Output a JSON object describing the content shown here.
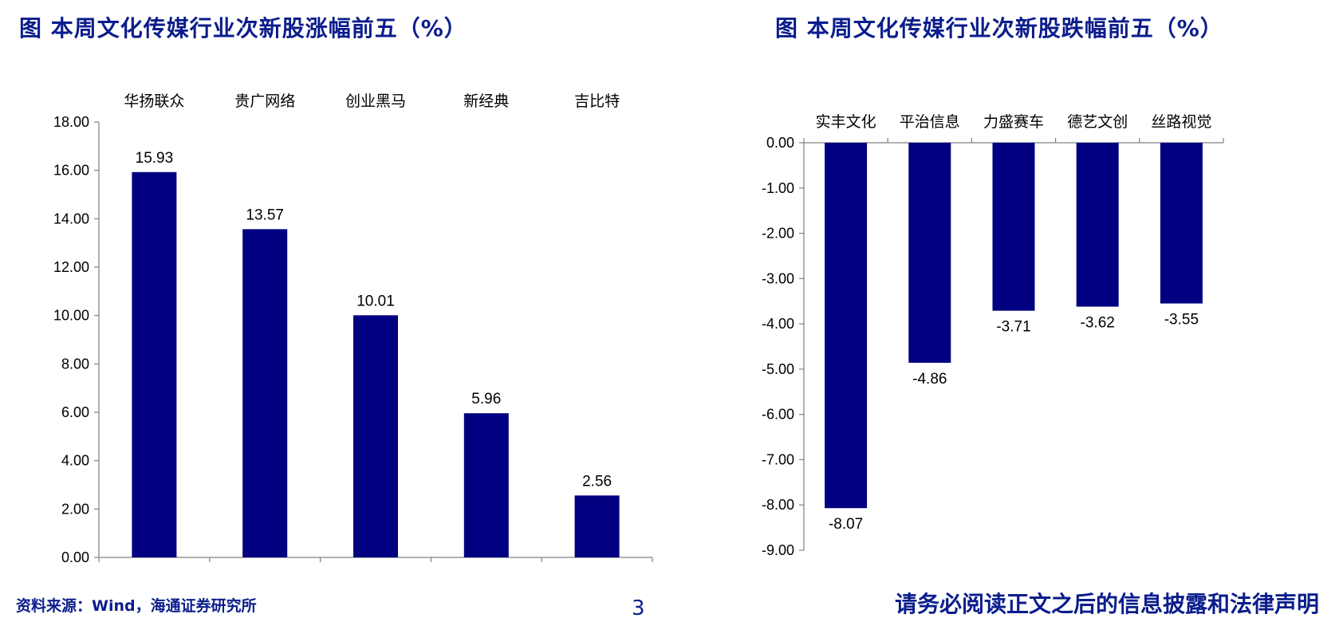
{
  "titles": {
    "left": "图 本周文化传媒行业次新股涨幅前五（%）",
    "right": "图 本周文化传媒行业次新股跌幅前五（%）"
  },
  "footer": {
    "source": "资料来源：Wind，海通证券研究所",
    "page": "3",
    "disclaimer": "请务必阅读正文之后的信息披露和法律声明"
  },
  "colors": {
    "bar": "#000080",
    "title": "#0b1d8c",
    "axis": "#808080"
  },
  "chart_data": [
    {
      "type": "bar",
      "title": "图 本周文化传媒行业次新股涨幅前五（%）",
      "categories": [
        "华扬联众",
        "贵广网络",
        "创业黑马",
        "新经典",
        "吉比特"
      ],
      "values": [
        15.93,
        13.57,
        10.01,
        5.96,
        2.56
      ],
      "value_labels": [
        "15.93",
        "13.57",
        "10.01",
        "5.96",
        "2.56"
      ],
      "ylim": [
        0,
        18
      ],
      "yticks": [
        0,
        2,
        4,
        6,
        8,
        10,
        12,
        14,
        16,
        18
      ],
      "ytick_labels": [
        "0.00",
        "2.00",
        "4.00",
        "6.00",
        "8.00",
        "10.00",
        "12.00",
        "14.00",
        "16.00",
        "18.00"
      ],
      "xlabel": "",
      "ylabel": "",
      "category_axis_position": "top",
      "grid": false,
      "legend": "none"
    },
    {
      "type": "bar",
      "title": "图 本周文化传媒行业次新股跌幅前五（%）",
      "categories": [
        "实丰文化",
        "平治信息",
        "力盛赛车",
        "德艺文创",
        "丝路视觉"
      ],
      "values": [
        -8.07,
        -4.86,
        -3.71,
        -3.62,
        -3.55
      ],
      "value_labels": [
        "-8.07",
        "-4.86",
        "-3.71",
        "-3.62",
        "-3.55"
      ],
      "ylim": [
        -9,
        0
      ],
      "yticks": [
        0,
        -1,
        -2,
        -3,
        -4,
        -5,
        -6,
        -7,
        -8,
        -9
      ],
      "ytick_labels": [
        "0.00",
        "-1.00",
        "-2.00",
        "-3.00",
        "-4.00",
        "-5.00",
        "-6.00",
        "-7.00",
        "-8.00",
        "-9.00"
      ],
      "xlabel": "",
      "ylabel": "",
      "category_axis_position": "top",
      "grid": false,
      "legend": "none"
    }
  ]
}
